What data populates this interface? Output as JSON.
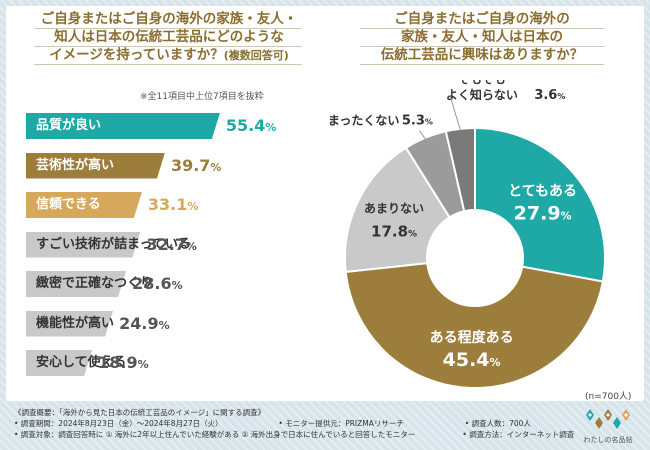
{
  "left_question": {
    "line1": "ご自身またはご自身の海外の家族・友人・",
    "line2": "知人は日本の伝統工芸品にどのような",
    "line3": "イメージを持っていますか？",
    "line3_sub": "(複数回答可)"
  },
  "right_question": {
    "line1": "ご自身またはご自身の海外の",
    "line2": "家族・友人・知人は日本の",
    "line3": "伝統工芸品に興味はありますか？"
  },
  "bar_note": "※全11項目中上位7項目を抜粋",
  "sample_note": "(n=700人)",
  "footer": {
    "line1": "《調査概要：「海外から見た日本の伝統工芸品のイメージ」に関する調査》",
    "period": "• 調査期間：2024年8月23日（金）〜2024年8月27日（火）",
    "provider": "• モニター提供元：PRIZMAリサーチ",
    "count": "• 調査人数：700人",
    "target": "• 調査対象：調査回答時に ① 海外に2年以上住んでいた経験がある ② 海外出身で日本に住んでいると回答したモニター",
    "method": "• 調査方法：インターネット調査"
  },
  "logo_text": "わたしの名品帖",
  "colors": {
    "teal": "#1ea9a6",
    "brown": "#9c7d3c",
    "tan": "#d6a85c",
    "gray": "#c9c9c9",
    "darkgray": "#9b9b9b",
    "dim": "#7a7a7a",
    "gold": "#8a6d2f"
  },
  "chart_data": [
    {
      "type": "bar",
      "orientation": "horizontal",
      "title": "ご自身またはご自身の海外の家族・友人・知人は日本の伝統工芸品にどのようなイメージを持っていますか？(複数回答可)",
      "unit": "%",
      "categories": [
        "品質が良い",
        "芸術性が高い",
        "信頼できる",
        "すごい技術が詰まっている",
        "緻密で正確なつくり",
        "機能性が高い",
        "安心して使える"
      ],
      "values": [
        55.4,
        39.7,
        33.1,
        32.7,
        28.6,
        24.9,
        18.9
      ],
      "value_labels": [
        "55.4",
        "39.7",
        "33.1",
        "32.7",
        "28.6",
        "24.9",
        "18.9"
      ],
      "xlim": [
        0,
        100
      ]
    },
    {
      "type": "pie",
      "style": "donut",
      "title": "ご自身またはご自身の海外の家族・友人・知人は日本の伝統工芸品に興味はありますか？",
      "categories": [
        "とてもある",
        "ある程度ある",
        "あまりない",
        "まったくない",
        "そもそもよく知らない"
      ],
      "values": [
        27.9,
        45.4,
        17.8,
        5.3,
        3.6
      ],
      "value_labels": [
        "27.9",
        "45.4",
        "17.8",
        "5.3",
        "3.6"
      ],
      "unit": "%",
      "n": "n=700人"
    }
  ]
}
